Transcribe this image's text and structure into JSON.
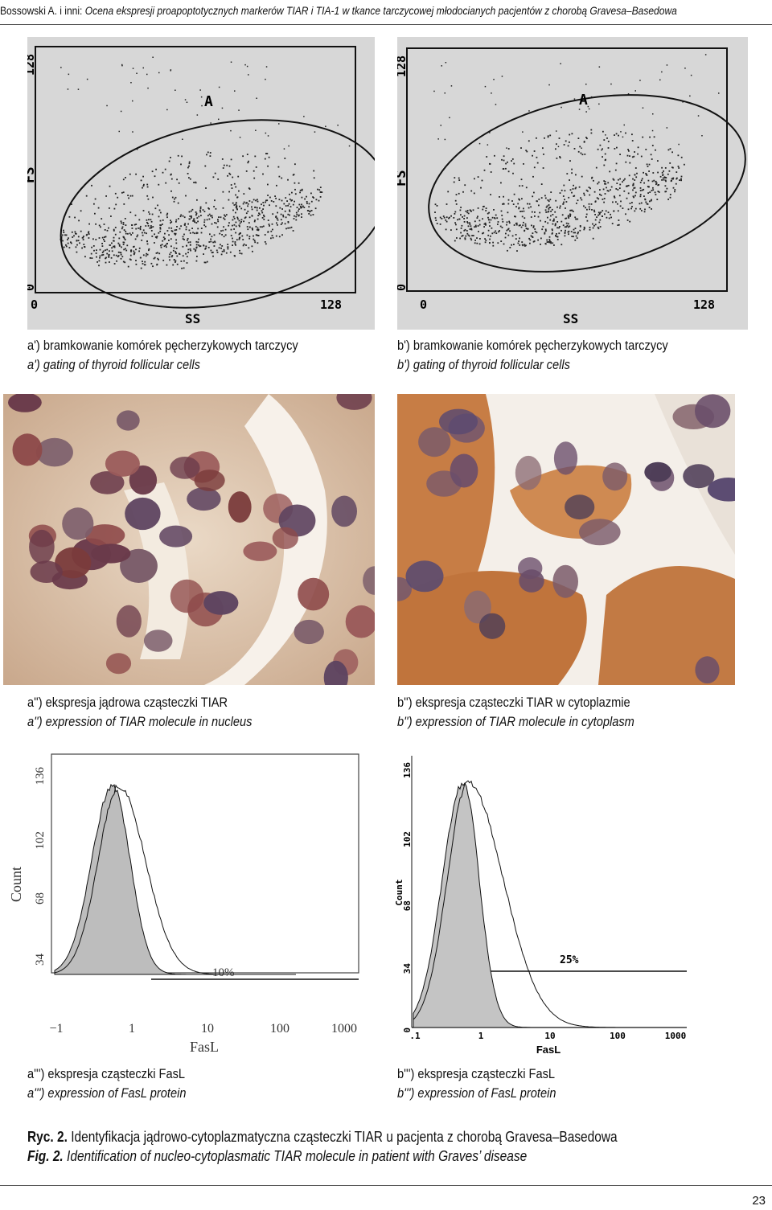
{
  "header": {
    "authors": "Bossowski A. i inni: ",
    "title": "Ocena ekspresji proapoptotycznych markerów TIAR i TIA-1 w tkance tarczycowej młodocianych pacjentów z chorobą Gravesa–Basedowa"
  },
  "panels": {
    "a1": {
      "caption_pl": "a') bramkowanie komórek pęcherzykowych tarczycy",
      "caption_en": "a') gating of thyroid follicular cells",
      "plot": {
        "ylabel": "FS",
        "xlabel": "SS",
        "y_top": "128",
        "y_zero": "0",
        "x_zero": "0",
        "x_max": "128",
        "gate_label": "A"
      }
    },
    "b1": {
      "caption_pl": "b') bramkowanie komórek pęcherzykowych tarczycy",
      "caption_en": "b') gating of thyroid follicular cells",
      "plot": {
        "ylabel": "FS",
        "xlabel": "SS",
        "y_top": "128",
        "y_zero": "0",
        "x_zero": "0",
        "x_max": "128",
        "gate_label": "A"
      }
    },
    "a2": {
      "caption_pl": "a'') ekspresja jądrowa cząsteczki TIAR",
      "caption_en": "a'') expression of TIAR molecule in nucleus"
    },
    "b2": {
      "caption_pl": "b'') ekspresja cząsteczki TIAR w cytoplazmie",
      "caption_en": "b'') expression of TIAR molecule in cytoplasm"
    },
    "a3": {
      "caption_pl": "a''') ekspresja cząsteczki FasL",
      "caption_en": "a''') expression of FasL protein",
      "plot": {
        "ylabel": "Count",
        "xlabel": "FasL",
        "y_ticks": [
          "136",
          "102",
          "68",
          "34"
        ],
        "x_ticks": [
          "−1",
          "1",
          "10",
          "100",
          "1000"
        ],
        "marker_label": "10%"
      }
    },
    "b3": {
      "caption_pl": "b''') ekspresja cząsteczki FasL",
      "caption_en": "b''') expression of FasL protein",
      "plot": {
        "ylabel": "Count",
        "xlabel": "FasL",
        "y_ticks": [
          "136",
          "102",
          "68",
          "34",
          "0"
        ],
        "x_ticks": [
          ".1",
          "1",
          "10",
          "100",
          "1000"
        ],
        "marker_label": "25%"
      }
    }
  },
  "figure": {
    "label_pl": "Ryc. 2.",
    "caption_pl": " Identyfikacja jądrowo-cytoplazmatyczna cząsteczki TIAR u pacjenta z chorobą Gravesa–Basedowa",
    "label_en": "Fig. 2.",
    "caption_en": " Identification of nucleo-cytoplasmatic TIAR molecule in patient with Graves’ disease"
  },
  "page_number": "23"
}
